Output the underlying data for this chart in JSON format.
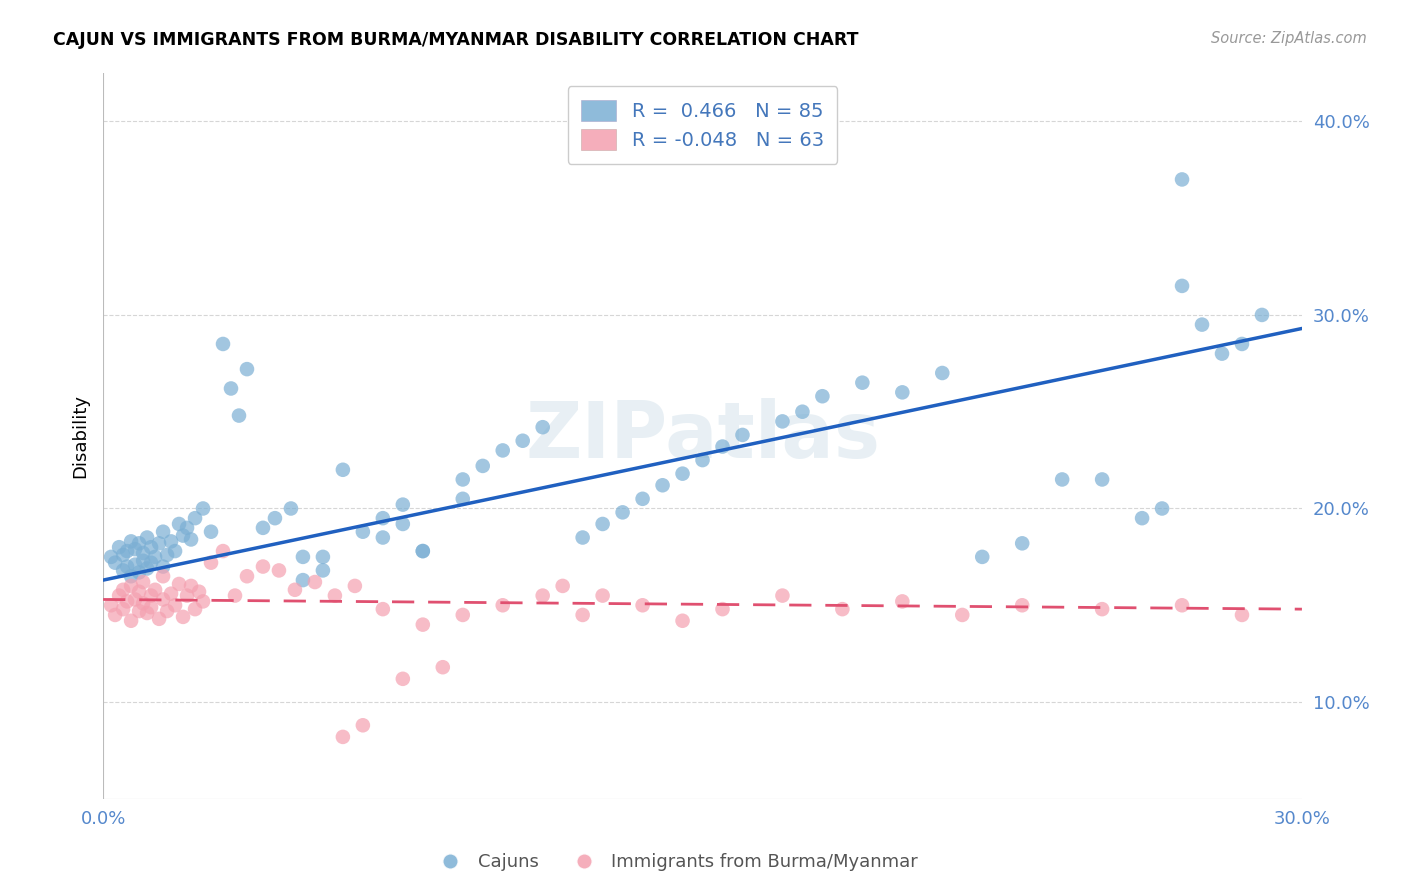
{
  "title": "CAJUN VS IMMIGRANTS FROM BURMA/MYANMAR DISABILITY CORRELATION CHART",
  "source": "Source: ZipAtlas.com",
  "ylabel": "Disability",
  "x_min": 0.0,
  "x_max": 0.3,
  "y_min": 0.05,
  "y_max": 0.425,
  "x_ticks": [
    0.0,
    0.05,
    0.1,
    0.15,
    0.2,
    0.25,
    0.3
  ],
  "y_ticks": [
    0.1,
    0.2,
    0.3,
    0.4
  ],
  "y_tick_labels": [
    "10.0%",
    "20.0%",
    "30.0%",
    "40.0%"
  ],
  "cajun_color": "#7bafd4",
  "burma_color": "#f4a0b0",
  "cajun_line_color": "#2060c0",
  "burma_line_color": "#e05070",
  "background_color": "#ffffff",
  "grid_color": "#cccccc",
  "watermark": "ZIPatlas",
  "legend_r_cajun": " 0.466",
  "legend_n_cajun": "85",
  "legend_r_burma": "-0.048",
  "legend_n_burma": "63",
  "cajun_label": "Cajuns",
  "burma_label": "Immigrants from Burma/Myanmar",
  "cajun_line_x0": 0.0,
  "cajun_line_y0": 0.163,
  "cajun_line_x1": 0.3,
  "cajun_line_y1": 0.293,
  "burma_line_x0": 0.0,
  "burma_line_y0": 0.153,
  "burma_line_x1": 0.3,
  "burma_line_y1": 0.148,
  "cajun_scatter_x": [
    0.002,
    0.003,
    0.004,
    0.005,
    0.005,
    0.006,
    0.006,
    0.007,
    0.007,
    0.008,
    0.008,
    0.009,
    0.009,
    0.01,
    0.01,
    0.011,
    0.011,
    0.012,
    0.012,
    0.013,
    0.014,
    0.015,
    0.015,
    0.016,
    0.017,
    0.018,
    0.019,
    0.02,
    0.021,
    0.022,
    0.023,
    0.025,
    0.027,
    0.03,
    0.032,
    0.034,
    0.036,
    0.04,
    0.043,
    0.047,
    0.05,
    0.055,
    0.06,
    0.065,
    0.07,
    0.075,
    0.08,
    0.09,
    0.095,
    0.1,
    0.105,
    0.11,
    0.12,
    0.125,
    0.13,
    0.135,
    0.14,
    0.145,
    0.15,
    0.155,
    0.16,
    0.17,
    0.175,
    0.18,
    0.19,
    0.2,
    0.21,
    0.22,
    0.23,
    0.24,
    0.25,
    0.26,
    0.265,
    0.27,
    0.275,
    0.28,
    0.285,
    0.05,
    0.055,
    0.07,
    0.075,
    0.08,
    0.09,
    0.27,
    0.29
  ],
  "cajun_scatter_y": [
    0.175,
    0.172,
    0.18,
    0.168,
    0.176,
    0.17,
    0.178,
    0.165,
    0.183,
    0.171,
    0.179,
    0.167,
    0.182,
    0.173,
    0.177,
    0.169,
    0.185,
    0.172,
    0.18,
    0.175,
    0.182,
    0.17,
    0.188,
    0.176,
    0.183,
    0.178,
    0.192,
    0.186,
    0.19,
    0.184,
    0.195,
    0.2,
    0.188,
    0.285,
    0.262,
    0.248,
    0.272,
    0.19,
    0.195,
    0.2,
    0.163,
    0.175,
    0.22,
    0.188,
    0.195,
    0.202,
    0.178,
    0.215,
    0.222,
    0.23,
    0.235,
    0.242,
    0.185,
    0.192,
    0.198,
    0.205,
    0.212,
    0.218,
    0.225,
    0.232,
    0.238,
    0.245,
    0.25,
    0.258,
    0.265,
    0.26,
    0.27,
    0.175,
    0.182,
    0.215,
    0.215,
    0.195,
    0.2,
    0.315,
    0.295,
    0.28,
    0.285,
    0.175,
    0.168,
    0.185,
    0.192,
    0.178,
    0.205,
    0.37,
    0.3
  ],
  "burma_scatter_x": [
    0.002,
    0.003,
    0.004,
    0.005,
    0.005,
    0.006,
    0.007,
    0.007,
    0.008,
    0.009,
    0.009,
    0.01,
    0.01,
    0.011,
    0.012,
    0.012,
    0.013,
    0.014,
    0.015,
    0.015,
    0.016,
    0.017,
    0.018,
    0.019,
    0.02,
    0.021,
    0.022,
    0.023,
    0.024,
    0.025,
    0.027,
    0.03,
    0.033,
    0.036,
    0.04,
    0.044,
    0.048,
    0.053,
    0.058,
    0.063,
    0.07,
    0.08,
    0.09,
    0.1,
    0.11,
    0.12,
    0.135,
    0.145,
    0.155,
    0.17,
    0.185,
    0.2,
    0.215,
    0.23,
    0.25,
    0.27,
    0.285,
    0.06,
    0.065,
    0.075,
    0.085,
    0.115,
    0.125
  ],
  "burma_scatter_y": [
    0.15,
    0.145,
    0.155,
    0.148,
    0.158,
    0.152,
    0.142,
    0.16,
    0.153,
    0.147,
    0.157,
    0.151,
    0.162,
    0.146,
    0.155,
    0.149,
    0.158,
    0.143,
    0.153,
    0.165,
    0.147,
    0.156,
    0.15,
    0.161,
    0.144,
    0.155,
    0.16,
    0.148,
    0.157,
    0.152,
    0.172,
    0.178,
    0.155,
    0.165,
    0.17,
    0.168,
    0.158,
    0.162,
    0.155,
    0.16,
    0.148,
    0.14,
    0.145,
    0.15,
    0.155,
    0.145,
    0.15,
    0.142,
    0.148,
    0.155,
    0.148,
    0.152,
    0.145,
    0.15,
    0.148,
    0.15,
    0.145,
    0.082,
    0.088,
    0.112,
    0.118,
    0.16,
    0.155
  ]
}
